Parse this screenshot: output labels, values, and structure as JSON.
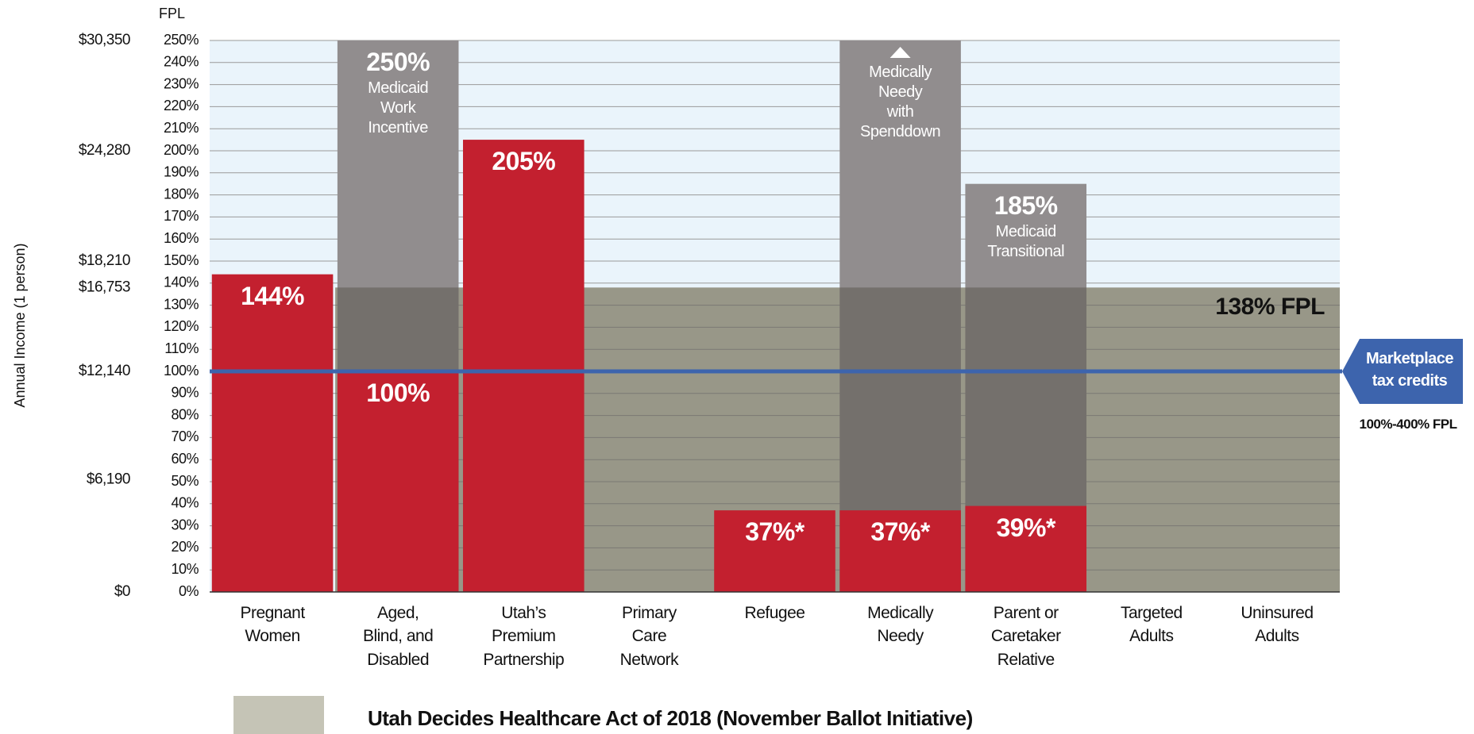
{
  "chart_data": {
    "type": "bar",
    "y_label": "FPL",
    "y2_label": "Annual Income (1 person)",
    "categories": [
      "Pregnant\nWomen",
      "Aged,\nBlind, and\nDisabled",
      "Utah’s\nPremium\nPartnership",
      "Primary\nCare\nNetwork",
      "Refugee",
      "Medically\nNeedy",
      "Parent or\nCaretaker\nRelative",
      "Targeted\nAdults",
      "Uninsured\nAdults"
    ],
    "series": [
      {
        "color": "#918d8e",
        "values": [
          null,
          250,
          null,
          null,
          null,
          250,
          185,
          null,
          null
        ],
        "value_labels": [
          null,
          "250%",
          null,
          null,
          null,
          null,
          "185%",
          null,
          null
        ],
        "notes": [
          null,
          "Medicaid\nWork\nIncentive",
          null,
          null,
          null,
          "Medically\nNeedy\nwith\nSpenddown",
          "Medicaid\nTransitional",
          null,
          null
        ]
      },
      {
        "color": "#c3202f",
        "values": [
          144,
          100,
          205,
          null,
          37,
          37,
          39,
          null,
          null
        ],
        "value_labels": [
          "144%",
          "100%",
          "205%",
          null,
          "37%*",
          "37%*",
          "39%*",
          null,
          null
        ]
      }
    ],
    "ballot": {
      "value": 138,
      "label": "138% FPL",
      "color": "#c5c4b6",
      "legend": "Utah Decides Healthcare Act of 2018 (November Ballot Initiative)"
    },
    "marketplace": {
      "value": 100,
      "label": "Marketplace\ntax credits",
      "sublabel": "100%-400% FPL",
      "color": "#3d64ad"
    },
    "ylim": [
      0,
      250
    ],
    "yticks": [
      {
        "value": 0,
        "label": "0%"
      },
      {
        "value": 10,
        "label": "10%"
      },
      {
        "value": 20,
        "label": "20%"
      },
      {
        "value": 30,
        "label": "30%"
      },
      {
        "value": 40,
        "label": "40%"
      },
      {
        "value": 50,
        "label": "50%"
      },
      {
        "value": 60,
        "label": "60%"
      },
      {
        "value": 70,
        "label": "70%"
      },
      {
        "value": 80,
        "label": "80%"
      },
      {
        "value": 90,
        "label": "90%"
      },
      {
        "value": 100,
        "label": "100%"
      },
      {
        "value": 110,
        "label": "110%"
      },
      {
        "value": 120,
        "label": "120%"
      },
      {
        "value": 130,
        "label": "130%"
      },
      {
        "value": 140,
        "label": "140%"
      },
      {
        "value": 150,
        "label": "150%"
      },
      {
        "value": 160,
        "label": "160%"
      },
      {
        "value": 170,
        "label": "170%"
      },
      {
        "value": 180,
        "label": "180%"
      },
      {
        "value": 190,
        "label": "190%"
      },
      {
        "value": 200,
        "label": "200%"
      },
      {
        "value": 210,
        "label": "210%"
      },
      {
        "value": 220,
        "label": "220%"
      },
      {
        "value": 230,
        "label": "230%"
      },
      {
        "value": 240,
        "label": "240%"
      },
      {
        "value": 250,
        "label": "250%"
      }
    ],
    "y2lim": [
      0,
      30350
    ],
    "y2ticks": [
      {
        "value": 0,
        "label": "$0"
      },
      {
        "value": 6190,
        "label": "$6,190"
      },
      {
        "value": 12140,
        "label": "$12,140"
      },
      {
        "value": 16753,
        "label": "$16,753"
      },
      {
        "value": 18210,
        "label": "$18,210"
      },
      {
        "value": 24280,
        "label": "$24,280"
      },
      {
        "value": 30350,
        "label": "$30,350"
      }
    ],
    "grid": true
  }
}
